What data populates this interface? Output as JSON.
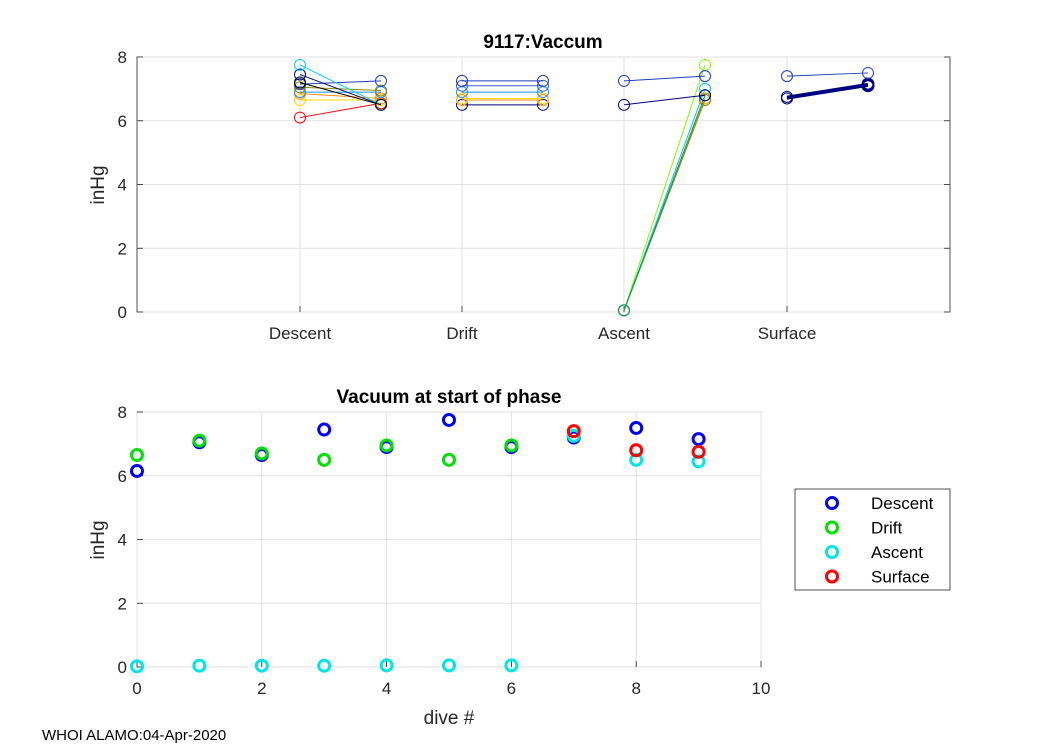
{
  "footer": {
    "label": "WHOI ALAMO:04-Apr-2020"
  },
  "chart_data": [
    {
      "type": "line",
      "title": "9117:Vaccum",
      "xlabel": "",
      "ylabel": "inHg",
      "ylim": [
        0,
        8
      ],
      "yticks": [
        0,
        2,
        4,
        6,
        8
      ],
      "categories": [
        "Descent",
        "Drift",
        "Ascent",
        "Surface"
      ],
      "grid": true,
      "note": "Each dive is a line segment from start to end of phase",
      "segments": [
        {
          "phase": "Descent",
          "start": 6.1,
          "end": 6.55,
          "color": "#ff0000"
        },
        {
          "phase": "Descent",
          "start": 6.65,
          "end": 6.65,
          "color": "#ffd700"
        },
        {
          "phase": "Descent",
          "start": 6.85,
          "end": 6.7,
          "color": "#ff8c00"
        },
        {
          "phase": "Descent",
          "start": 6.9,
          "end": 6.9,
          "color": "#1e90ff"
        },
        {
          "phase": "Descent",
          "start": 7.05,
          "end": 6.95,
          "color": "#8a8a00"
        },
        {
          "phase": "Descent",
          "start": 7.15,
          "end": 7.25,
          "color": "#1f3fbf"
        },
        {
          "phase": "Descent",
          "start": 7.45,
          "end": 6.5,
          "color": "#000080"
        },
        {
          "phase": "Descent",
          "start": 7.75,
          "end": 6.5,
          "color": "#00d0ff"
        },
        {
          "phase": "Descent",
          "start": 7.2,
          "end": 6.5,
          "color": "#000000"
        },
        {
          "phase": "Drift",
          "start": 6.5,
          "end": 6.5,
          "color": "#000080"
        },
        {
          "phase": "Drift",
          "start": 6.65,
          "end": 6.65,
          "color": "#ff8c00"
        },
        {
          "phase": "Drift",
          "start": 6.7,
          "end": 6.7,
          "color": "#ffd700"
        },
        {
          "phase": "Drift",
          "start": 6.9,
          "end": 6.9,
          "color": "#1e90ff"
        },
        {
          "phase": "Drift",
          "start": 7.1,
          "end": 7.1,
          "color": "#3a5fcd"
        },
        {
          "phase": "Drift",
          "start": 7.25,
          "end": 7.25,
          "color": "#1f3fbf"
        },
        {
          "phase": "Ascent",
          "start": 0.05,
          "end": 7.75,
          "color": "#7fff00"
        },
        {
          "phase": "Ascent",
          "start": 0.05,
          "end": 7.0,
          "color": "#00c8ff"
        },
        {
          "phase": "Ascent",
          "start": 0.05,
          "end": 6.7,
          "color": "#ff8c00"
        },
        {
          "phase": "Ascent",
          "start": 0.05,
          "end": 6.65,
          "color": "#8a8a00"
        },
        {
          "phase": "Ascent",
          "start": 0.05,
          "end": 6.8,
          "color": "#00a060"
        },
        {
          "phase": "Ascent",
          "start": 6.5,
          "end": 6.8,
          "color": "#000080"
        },
        {
          "phase": "Ascent",
          "start": 7.25,
          "end": 7.4,
          "color": "#1f3fbf"
        },
        {
          "phase": "Surface",
          "start": 6.75,
          "end": 7.15,
          "color": "#000080"
        },
        {
          "phase": "Surface",
          "start": 6.7,
          "end": 7.1,
          "color": "#000080"
        },
        {
          "phase": "Surface",
          "start": 7.4,
          "end": 7.5,
          "color": "#1f3fbf"
        }
      ]
    },
    {
      "type": "scatter",
      "title": "Vacuum at start of phase",
      "xlabel": "dive #",
      "ylabel": "inHg",
      "xlim": [
        0,
        10
      ],
      "ylim": [
        0,
        8
      ],
      "xticks": [
        0,
        2,
        4,
        6,
        8,
        10
      ],
      "yticks": [
        0,
        2,
        4,
        6,
        8
      ],
      "grid": true,
      "legend": "right",
      "series": [
        {
          "name": "Descent",
          "color": "#0000ff",
          "x": [
            0,
            1,
            2,
            3,
            4,
            5,
            6,
            7,
            8,
            9
          ],
          "y": [
            6.15,
            7.05,
            6.65,
            7.45,
            6.9,
            7.75,
            6.9,
            7.2,
            7.5,
            7.15
          ]
        },
        {
          "name": "Drift",
          "color": "#00e000",
          "x": [
            0,
            1,
            2,
            3,
            4,
            5,
            6
          ],
          "y": [
            6.65,
            7.1,
            6.7,
            6.5,
            6.95,
            6.5,
            6.95
          ]
        },
        {
          "name": "Ascent",
          "color": "#00e5e5",
          "x": [
            0,
            1,
            2,
            3,
            4,
            5,
            6,
            7,
            8,
            9
          ],
          "y": [
            0.02,
            0.04,
            0.04,
            0.04,
            0.05,
            0.05,
            0.05,
            7.25,
            6.5,
            6.45
          ]
        },
        {
          "name": "Surface",
          "color": "#ff0000",
          "x": [
            7,
            8,
            9
          ],
          "y": [
            7.4,
            6.8,
            6.75
          ]
        }
      ]
    }
  ]
}
